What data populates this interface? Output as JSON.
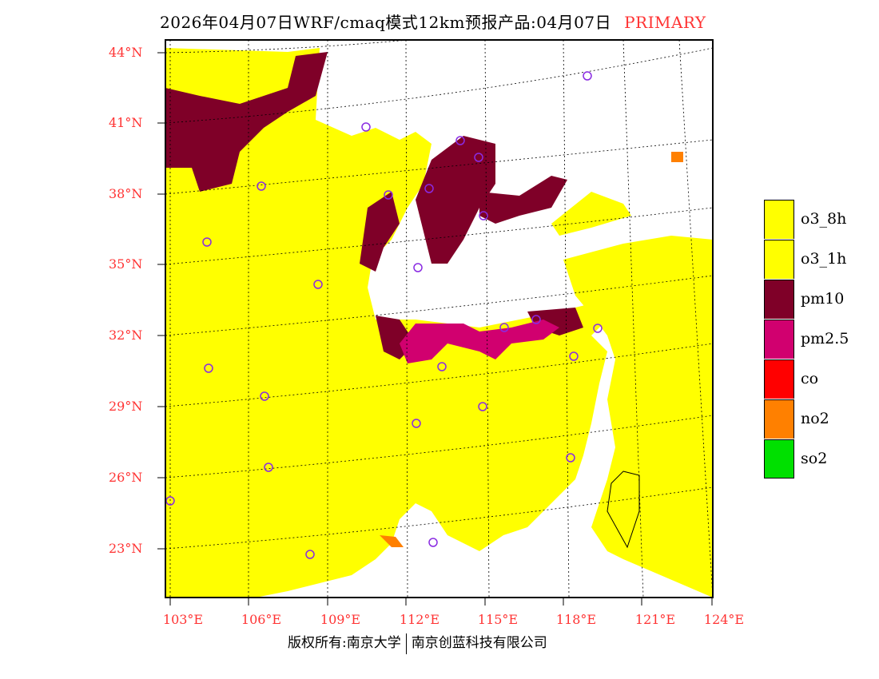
{
  "title": {
    "main": "2026年04月07日WRF/cmaq模式12km预报产品:04月07日",
    "tag": "PRIMARY"
  },
  "map": {
    "lat_labels": [
      "44°N",
      "41°N",
      "38°N",
      "35°N",
      "32°N",
      "29°N",
      "26°N",
      "23°N"
    ],
    "lon_labels": [
      "103°E",
      "106°E",
      "109°E",
      "112°E",
      "115°E",
      "118°E",
      "121°E",
      "124°E"
    ]
  },
  "legend": [
    {
      "label": "o3_8h",
      "color": "#ffff00"
    },
    {
      "label": "o3_1h",
      "color": "#ffff00"
    },
    {
      "label": "pm10",
      "color": "#7f0028"
    },
    {
      "label": "pm2.5",
      "color": "#d1006f"
    },
    {
      "label": "co",
      "color": "#ff0000"
    },
    {
      "label": "no2",
      "color": "#ff8000"
    },
    {
      "label": "so2",
      "color": "#00e000"
    }
  ],
  "footer": {
    "left": "版权所有:南京大学",
    "right": "南京创蓝科技有限公司"
  }
}
